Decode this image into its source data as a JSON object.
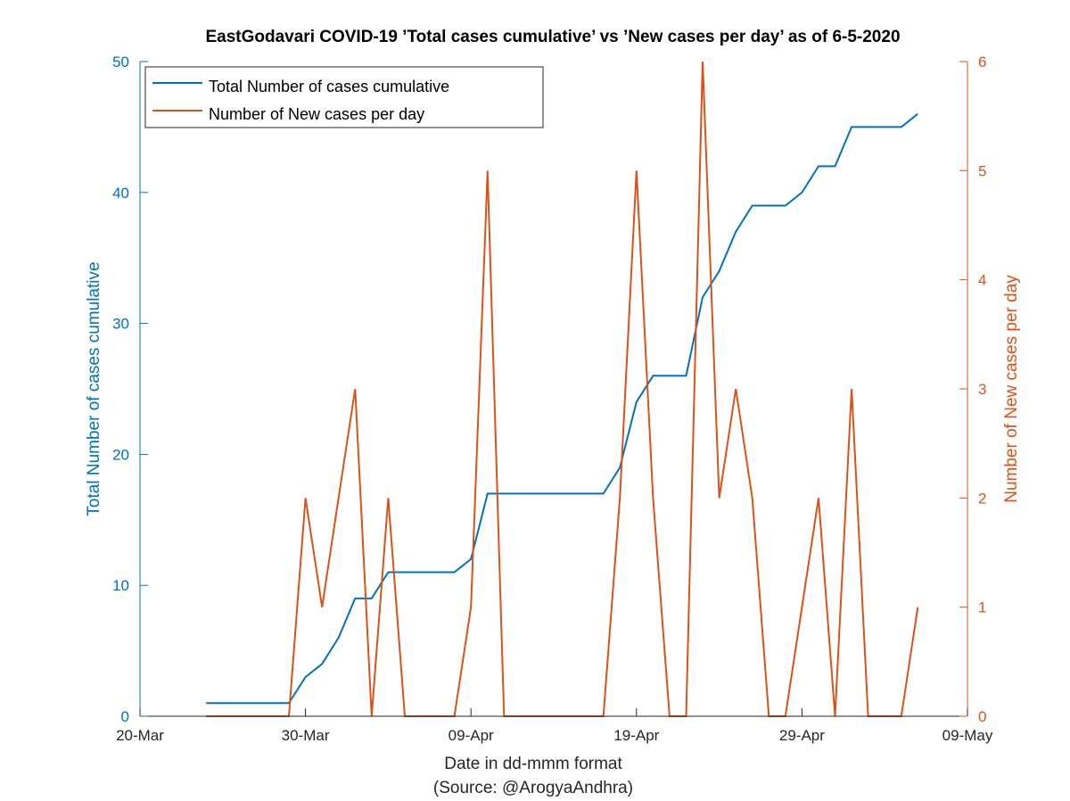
{
  "chart_data": {
    "type": "line",
    "title": "EastGodavari COVID-19 ’Total cases cumulative’ vs ’New cases per day’ as of 6-5-2020",
    "xlabel": "Date in dd-mmm format",
    "source": "(Source: @ArogyaAndhra)",
    "x_range": [
      "2020-03-20",
      "2020-05-09"
    ],
    "x_ticks": [
      {
        "date": "2020-03-20",
        "label": "20-Mar"
      },
      {
        "date": "2020-03-30",
        "label": "30-Mar"
      },
      {
        "date": "2020-04-09",
        "label": "09-Apr"
      },
      {
        "date": "2020-04-19",
        "label": "19-Apr"
      },
      {
        "date": "2020-04-29",
        "label": "29-Apr"
      },
      {
        "date": "2020-05-09",
        "label": "09-May"
      }
    ],
    "y_left": {
      "label": "Total Number of cases cumulative",
      "range": [
        0,
        50
      ],
      "ticks": [
        "0",
        "10",
        "20",
        "30",
        "40",
        "50"
      ],
      "color": "#0072bd"
    },
    "y_right": {
      "label": "Number of New cases per day",
      "range": [
        0,
        6
      ],
      "ticks": [
        "0",
        "1",
        "2",
        "3",
        "4",
        "5",
        "6"
      ],
      "color": "#d95319"
    },
    "legend_position": "top-left",
    "grid": false,
    "x": [
      "2020-03-24",
      "2020-03-25",
      "2020-03-26",
      "2020-03-27",
      "2020-03-28",
      "2020-03-29",
      "2020-03-30",
      "2020-03-31",
      "2020-04-01",
      "2020-04-02",
      "2020-04-03",
      "2020-04-04",
      "2020-04-05",
      "2020-04-06",
      "2020-04-07",
      "2020-04-08",
      "2020-04-09",
      "2020-04-10",
      "2020-04-11",
      "2020-04-12",
      "2020-04-13",
      "2020-04-14",
      "2020-04-15",
      "2020-04-16",
      "2020-04-17",
      "2020-04-18",
      "2020-04-19",
      "2020-04-20",
      "2020-04-21",
      "2020-04-22",
      "2020-04-23",
      "2020-04-24",
      "2020-04-25",
      "2020-04-26",
      "2020-04-27",
      "2020-04-28",
      "2020-04-29",
      "2020-04-30",
      "2020-05-01",
      "2020-05-02",
      "2020-05-03",
      "2020-05-04",
      "2020-05-05",
      "2020-05-06"
    ],
    "series": [
      {
        "name": "Total Number of cases cumulative",
        "axis": "left",
        "color": "#0072bd",
        "values": [
          1,
          1,
          1,
          1,
          1,
          1,
          3,
          4,
          6,
          9,
          9,
          11,
          11,
          11,
          11,
          11,
          12,
          17,
          17,
          17,
          17,
          17,
          17,
          17,
          17,
          19,
          24,
          26,
          26,
          26,
          32,
          34,
          37,
          39,
          39,
          39,
          40,
          42,
          42,
          45,
          45,
          45,
          45,
          46
        ]
      },
      {
        "name": "Number of New cases per day",
        "axis": "right",
        "color": "#d95319",
        "values": [
          0,
          0,
          0,
          0,
          0,
          0,
          2,
          1,
          2,
          3,
          0,
          2,
          0,
          0,
          0,
          0,
          1,
          5,
          0,
          0,
          0,
          0,
          0,
          0,
          0,
          2,
          5,
          2,
          0,
          0,
          6,
          2,
          3,
          2,
          0,
          0,
          1,
          2,
          0,
          3,
          0,
          0,
          0,
          1
        ]
      }
    ]
  }
}
